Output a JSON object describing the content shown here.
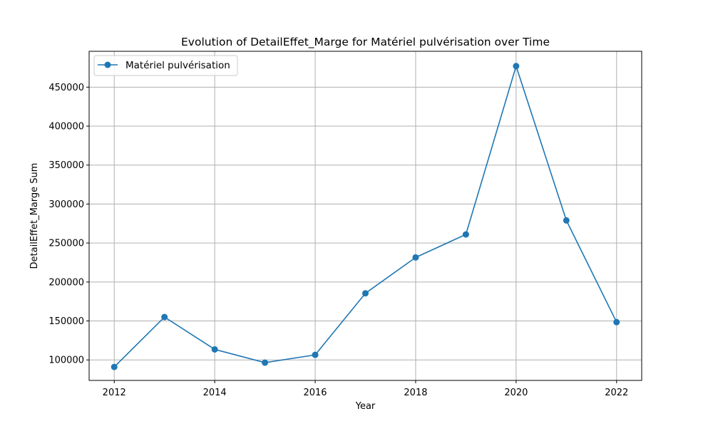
{
  "chart_data": {
    "type": "line",
    "title": "Evolution of DetailEffet_Marge for Matériel pulvérisation over Time",
    "xlabel": "Year",
    "ylabel": "DetailEffet_Marge Sum",
    "x": [
      2012,
      2013,
      2014,
      2015,
      2016,
      2017,
      2018,
      2019,
      2020,
      2021,
      2022
    ],
    "series": [
      {
        "name": "Matériel pulvérisation",
        "color": "#1f77b4",
        "marker": "circle",
        "values": [
          91000,
          155000,
          113500,
          96500,
          106500,
          185500,
          231500,
          261000,
          477000,
          279000,
          148500
        ]
      }
    ],
    "xlim": [
      2011.5,
      2022.5
    ],
    "ylim": [
      73700,
      496000
    ],
    "xticks": [
      "2012",
      "2014",
      "2016",
      "2018",
      "2020",
      "2022"
    ],
    "yticks": [
      "100000",
      "150000",
      "200000",
      "250000",
      "300000",
      "350000",
      "400000",
      "450000"
    ],
    "grid": true,
    "legend_position": "top-left"
  }
}
